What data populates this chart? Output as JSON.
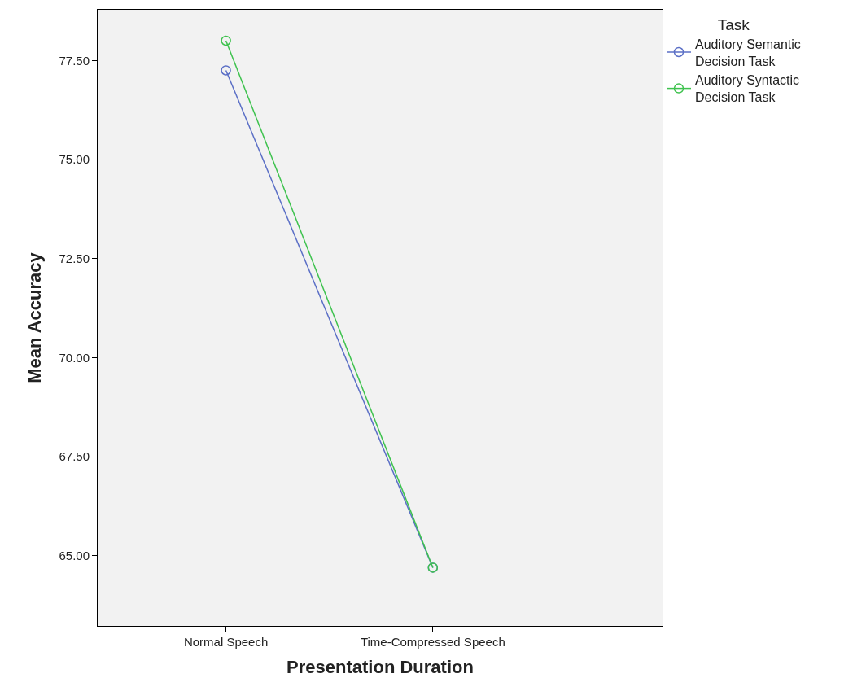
{
  "chart_data": {
    "type": "line",
    "xlabel": "Presentation Duration",
    "ylabel": "Mean Accuracy",
    "legend_title": "Task",
    "categories": [
      "Normal Speech",
      "Time-Compressed Speech"
    ],
    "series": [
      {
        "name": "Auditory Semantic Decision Task",
        "color": "#5b6fc6",
        "values": [
          77.25,
          64.7
        ]
      },
      {
        "name": "Auditory Syntactic Decision Task",
        "color": "#3ec24e",
        "values": [
          78.0,
          64.7
        ]
      }
    ],
    "ylim": [
      63.23,
      78.78
    ],
    "yticks": [
      {
        "value": 65,
        "label": "65.00"
      },
      {
        "value": 67.5,
        "label": "67.50"
      },
      {
        "value": 70,
        "label": "70.00"
      },
      {
        "value": 72.5,
        "label": "72.50"
      },
      {
        "value": 75,
        "label": "75.00"
      },
      {
        "value": 77.5,
        "label": "77.50"
      }
    ],
    "marker": "circle",
    "line_style": "solid",
    "grid": false,
    "legend": "top right"
  }
}
